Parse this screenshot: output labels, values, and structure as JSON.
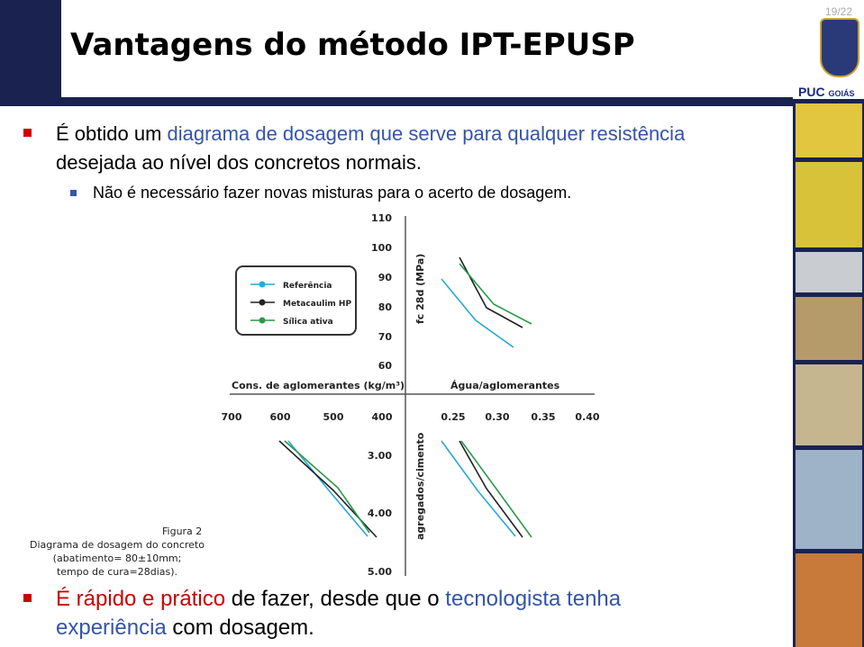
{
  "slide_number": "19/22",
  "title": "Vantagens do método IPT-EPUSP",
  "logo": {
    "name": "PUC",
    "place": "GOIÁS"
  },
  "bullets": [
    {
      "parts": [
        {
          "text": "É obtido um "
        },
        {
          "text": "diagrama de dosagem que serve para qualquer resistência",
          "color": "#3355aa"
        },
        {
          "text": " desejada ao nível dos concretos normais."
        }
      ],
      "sub": [
        "Não é necessário fazer novas misturas para o acerto de dosagem."
      ]
    },
    {
      "parts": [
        {
          "text": "É rápido e prático",
          "color": "#cc0000"
        },
        {
          "text": " de fazer, desde que o "
        },
        {
          "text": "tecnologista tenha experiência",
          "color": "#3355aa"
        },
        {
          "text": " com dosagem."
        }
      ]
    }
  ],
  "figure": {
    "y_label_top": "fc 28d (MPa)",
    "x_label_left": "Cons. de aglomerantes (kg/m³)",
    "x_label_right": "Água/aglomerantes",
    "y_label_bottom": "agregados/cimento",
    "top_ticks": [
      "110",
      "100",
      "90",
      "80",
      "70",
      "60"
    ],
    "left_ticks": [
      "700",
      "600",
      "500",
      "400"
    ],
    "right_ticks": [
      "0.25",
      "0.30",
      "0.35",
      "0.40"
    ],
    "bottom_ticks": [
      "3.00",
      "4.00",
      "5.00"
    ],
    "legend": [
      {
        "name": "Referência",
        "color": "#29a8d8"
      },
      {
        "name": "Metacaulim HP",
        "color": "#222222"
      },
      {
        "name": "Sílica ativa",
        "color": "#2a9a4a"
      }
    ],
    "caption": [
      "Figura 2",
      "Diagrama de dosagem do concreto",
      "(abatimento= 80±10mm;",
      "tempo de cura=28dias)."
    ]
  }
}
